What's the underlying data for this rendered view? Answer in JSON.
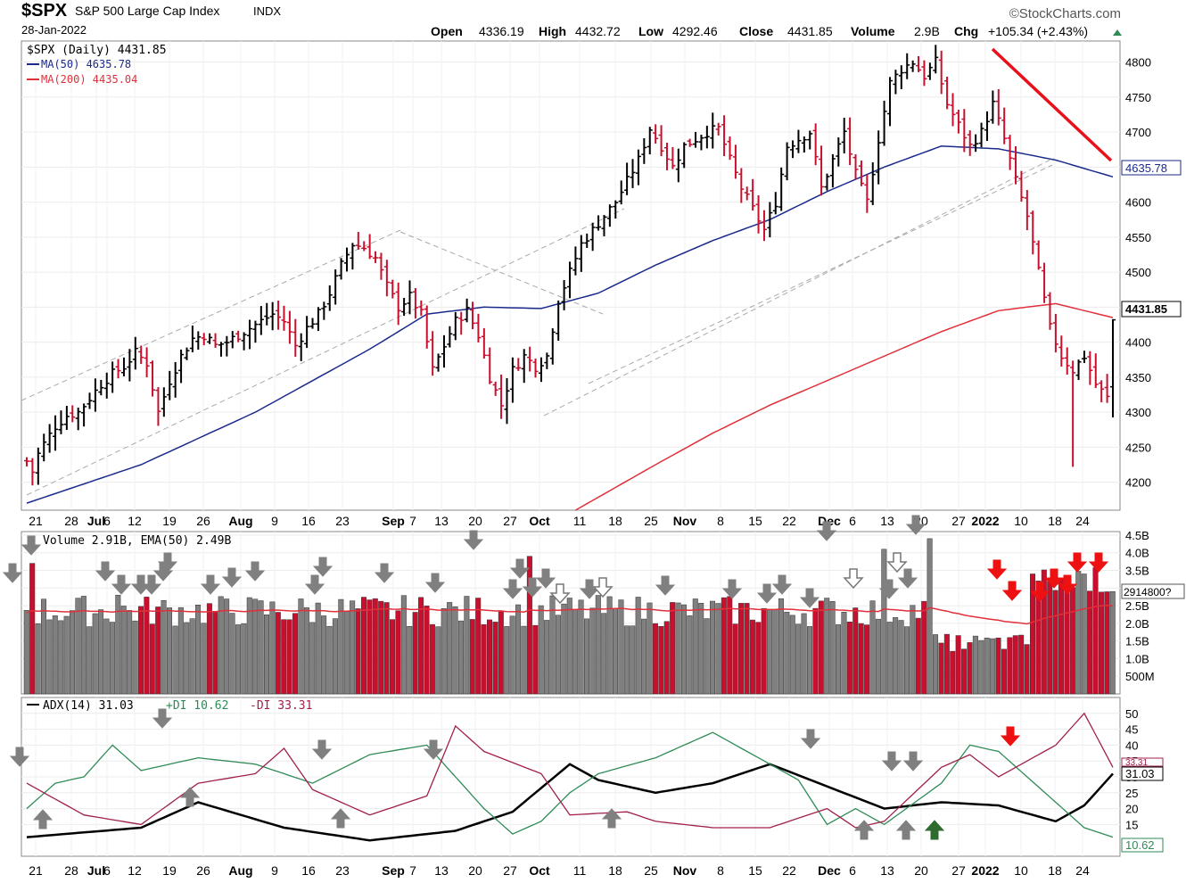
{
  "header": {
    "symbol": "$SPX",
    "name": "S&P 500 Large Cap Index",
    "exchange": "INDX",
    "date": "28-Jan-2022",
    "brand": "©StockCharts.com",
    "open_label": "Open",
    "open": "4336.19",
    "high_label": "High",
    "high": "4432.72",
    "low_label": "Low",
    "low": "4292.46",
    "close_label": "Close",
    "close": "4431.85",
    "volume_label": "Volume",
    "volume": "2.9B",
    "chg_label": "Chg",
    "chg": "+105.34 (+2.43%)"
  },
  "legend": {
    "price": "$SPX (Daily) 4431.85",
    "ma50": "MA(50) 4635.78",
    "ma200": "MA(200) 4435.04",
    "volume": "Volume 2.91B, EMA(50) 2.49B",
    "adx": "ADX(14) 31.03",
    "pdi": "+DI 10.62",
    "mdi": "-DI 33.31"
  },
  "badges": {
    "ma50": "4635.78",
    "close": "4431.85",
    "volume": "2914800?",
    "adx_mdi": "33.31",
    "adx": "31.03",
    "pdi": "10.62"
  },
  "colors": {
    "up": "#000000",
    "down": "#c8102e",
    "ma50": "#1a2a8c",
    "ma200": "#e0303a",
    "vol_up": "#808080",
    "vol_down": "#c8102e",
    "adx": "#000000",
    "pdi": "#2e8b57",
    "mdi": "#a0204a",
    "trend": "#e8101a",
    "arrow_gray": "#808080",
    "arrow_red": "#ee1111",
    "arrow_green": "#2e6b2e"
  },
  "x_labels": [
    "21",
    "28",
    "Jul",
    "6",
    "12",
    "19",
    "26",
    "Aug",
    "9",
    "16",
    "23",
    "Sep",
    "7",
    "13",
    "20",
    "27",
    "Oct",
    "11",
    "18",
    "25",
    "Nov",
    "8",
    "15",
    "22",
    "Dec",
    "6",
    "13",
    "20",
    "27",
    "2022",
    "10",
    "18",
    "24"
  ],
  "chart_data": [
    {
      "type": "ohlc",
      "title": "$SPX (Daily)",
      "yticks": [
        4200,
        4250,
        4300,
        4350,
        4400,
        4450,
        4500,
        4550,
        4600,
        4650,
        4700,
        4750,
        4800
      ],
      "ylim": [
        4160,
        4830
      ],
      "close_path": [
        [
          0,
          4230
        ],
        [
          1,
          4215
        ],
        [
          2,
          4240
        ],
        [
          3,
          4255
        ],
        [
          5,
          4280
        ],
        [
          7,
          4295
        ],
        [
          9,
          4300
        ],
        [
          11,
          4320
        ],
        [
          13,
          4340
        ],
        [
          15,
          4355
        ],
        [
          17,
          4365
        ],
        [
          19,
          4385
        ],
        [
          21,
          4370
        ],
        [
          23,
          4300
        ],
        [
          25,
          4345
        ],
        [
          27,
          4380
        ],
        [
          29,
          4405
        ],
        [
          31,
          4410
        ],
        [
          33,
          4395
        ],
        [
          35,
          4400
        ],
        [
          37,
          4410
        ],
        [
          39,
          4420
        ],
        [
          41,
          4430
        ],
        [
          43,
          4440
        ],
        [
          45,
          4430
        ],
        [
          47,
          4395
        ],
        [
          49,
          4420
        ],
        [
          51,
          4440
        ],
        [
          53,
          4470
        ],
        [
          55,
          4510
        ],
        [
          57,
          4540
        ],
        [
          59,
          4535
        ],
        [
          61,
          4520
        ],
        [
          63,
          4480
        ],
        [
          65,
          4450
        ],
        [
          67,
          4465
        ],
        [
          69,
          4440
        ],
        [
          71,
          4360
        ],
        [
          73,
          4395
        ],
        [
          75,
          4430
        ],
        [
          77,
          4445
        ],
        [
          79,
          4410
        ],
        [
          81,
          4350
        ],
        [
          83,
          4310
        ],
        [
          85,
          4360
        ],
        [
          87,
          4380
        ],
        [
          89,
          4365
        ],
        [
          91,
          4380
        ],
        [
          93,
          4460
        ],
        [
          95,
          4500
        ],
        [
          97,
          4540
        ],
        [
          99,
          4560
        ],
        [
          101,
          4580
        ],
        [
          103,
          4600
        ],
        [
          105,
          4630
        ],
        [
          107,
          4660
        ],
        [
          109,
          4705
        ],
        [
          111,
          4680
        ],
        [
          113,
          4650
        ],
        [
          115,
          4680
        ],
        [
          117,
          4690
        ],
        [
          119,
          4700
        ],
        [
          121,
          4705
        ],
        [
          123,
          4660
        ],
        [
          125,
          4620
        ],
        [
          127,
          4590
        ],
        [
          129,
          4560
        ],
        [
          131,
          4600
        ],
        [
          133,
          4680
        ],
        [
          135,
          4690
        ],
        [
          137,
          4700
        ],
        [
          139,
          4620
        ],
        [
          141,
          4660
        ],
        [
          143,
          4700
        ],
        [
          145,
          4640
        ],
        [
          147,
          4600
        ],
        [
          149,
          4690
        ],
        [
          151,
          4770
        ],
        [
          153,
          4790
        ],
        [
          155,
          4800
        ],
        [
          157,
          4780
        ],
        [
          159,
          4800
        ],
        [
          161,
          4740
        ],
        [
          163,
          4710
        ],
        [
          165,
          4680
        ],
        [
          167,
          4700
        ],
        [
          169,
          4740
        ],
        [
          171,
          4690
        ],
        [
          173,
          4630
        ],
        [
          175,
          4580
        ],
        [
          177,
          4500
        ],
        [
          179,
          4420
        ],
        [
          181,
          4380
        ],
        [
          183,
          4360
        ],
        [
          185,
          4380
        ],
        [
          187,
          4340
        ],
        [
          189,
          4320
        ],
        [
          190,
          4430
        ]
      ],
      "ma50_path": [
        [
          0,
          4170
        ],
        [
          20,
          4225
        ],
        [
          40,
          4300
        ],
        [
          60,
          4390
        ],
        [
          70,
          4440
        ],
        [
          80,
          4450
        ],
        [
          90,
          4448
        ],
        [
          100,
          4470
        ],
        [
          110,
          4510
        ],
        [
          120,
          4545
        ],
        [
          130,
          4575
        ],
        [
          140,
          4615
        ],
        [
          150,
          4650
        ],
        [
          160,
          4680
        ],
        [
          170,
          4676
        ],
        [
          180,
          4660
        ],
        [
          190,
          4636
        ]
      ],
      "ma200_path": [
        [
          96,
          4160
        ],
        [
          110,
          4225
        ],
        [
          120,
          4270
        ],
        [
          130,
          4310
        ],
        [
          140,
          4345
        ],
        [
          150,
          4380
        ],
        [
          160,
          4415
        ],
        [
          170,
          4445
        ],
        [
          180,
          4455
        ],
        [
          190,
          4435
        ]
      ],
      "ohlc_info": {
        "open": 4336.19,
        "high": 4432.72,
        "low": 4292.46,
        "close": 4431.85
      },
      "last_close": 4431.85,
      "ma50_last": 4635.78,
      "ma200_last": 4435.04
    },
    {
      "type": "bar",
      "title": "Volume",
      "yticks": [
        "4.5B",
        "4.0B",
        "3.5B",
        "3.0B",
        "2.5B",
        "2.0B",
        "1.5B",
        "1.0B",
        "500M"
      ],
      "ytick_values": [
        4.5,
        4.0,
        3.5,
        3.0,
        2.5,
        2.0,
        1.5,
        1.0,
        0.5
      ],
      "ylim": [
        0,
        4.6
      ],
      "volume_ema_last": 2.49,
      "volume_last": 2.91
    },
    {
      "type": "line",
      "title": "ADX(14)",
      "yticks": [
        50,
        45,
        40,
        35,
        30,
        25,
        20,
        15
      ],
      "ylim": [
        5,
        55
      ],
      "series": [
        {
          "name": "ADX(14)",
          "last": 31.03,
          "values": [
            [
              0,
              11
            ],
            [
              20,
              14
            ],
            [
              30,
              22
            ],
            [
              45,
              14
            ],
            [
              60,
              10
            ],
            [
              75,
              13
            ],
            [
              85,
              19
            ],
            [
              95,
              34
            ],
            [
              100,
              29
            ],
            [
              110,
              25
            ],
            [
              120,
              28
            ],
            [
              130,
              34
            ],
            [
              140,
              27
            ],
            [
              150,
              20
            ],
            [
              160,
              22
            ],
            [
              170,
              21
            ],
            [
              180,
              16
            ],
            [
              185,
              21
            ],
            [
              190,
              31
            ]
          ]
        },
        {
          "name": "+DI",
          "last": 10.62,
          "values": [
            [
              0,
              20
            ],
            [
              5,
              28
            ],
            [
              10,
              30
            ],
            [
              15,
              40
            ],
            [
              20,
              32
            ],
            [
              30,
              36
            ],
            [
              40,
              34
            ],
            [
              50,
              28
            ],
            [
              60,
              37
            ],
            [
              70,
              40
            ],
            [
              80,
              20
            ],
            [
              85,
              12
            ],
            [
              90,
              16
            ],
            [
              95,
              25
            ],
            [
              100,
              31
            ],
            [
              110,
              36
            ],
            [
              120,
              44
            ],
            [
              128,
              36
            ],
            [
              135,
              29
            ],
            [
              140,
              15
            ],
            [
              145,
              20
            ],
            [
              150,
              15
            ],
            [
              160,
              28
            ],
            [
              165,
              40
            ],
            [
              170,
              38
            ],
            [
              180,
              22
            ],
            [
              185,
              14
            ],
            [
              190,
              11
            ]
          ]
        },
        {
          "name": "-DI",
          "last": 33.31,
          "values": [
            [
              0,
              28
            ],
            [
              10,
              18
            ],
            [
              20,
              15
            ],
            [
              30,
              28
            ],
            [
              40,
              31
            ],
            [
              45,
              39
            ],
            [
              50,
              26
            ],
            [
              60,
              18
            ],
            [
              70,
              24
            ],
            [
              75,
              46
            ],
            [
              80,
              38
            ],
            [
              90,
              31
            ],
            [
              95,
              18
            ],
            [
              105,
              19
            ],
            [
              110,
              16
            ],
            [
              120,
              14
            ],
            [
              130,
              14
            ],
            [
              140,
              20
            ],
            [
              145,
              14
            ],
            [
              150,
              16
            ],
            [
              160,
              33
            ],
            [
              165,
              37
            ],
            [
              170,
              30
            ],
            [
              180,
              40
            ],
            [
              185,
              50
            ],
            [
              190,
              33
            ]
          ]
        }
      ]
    }
  ]
}
